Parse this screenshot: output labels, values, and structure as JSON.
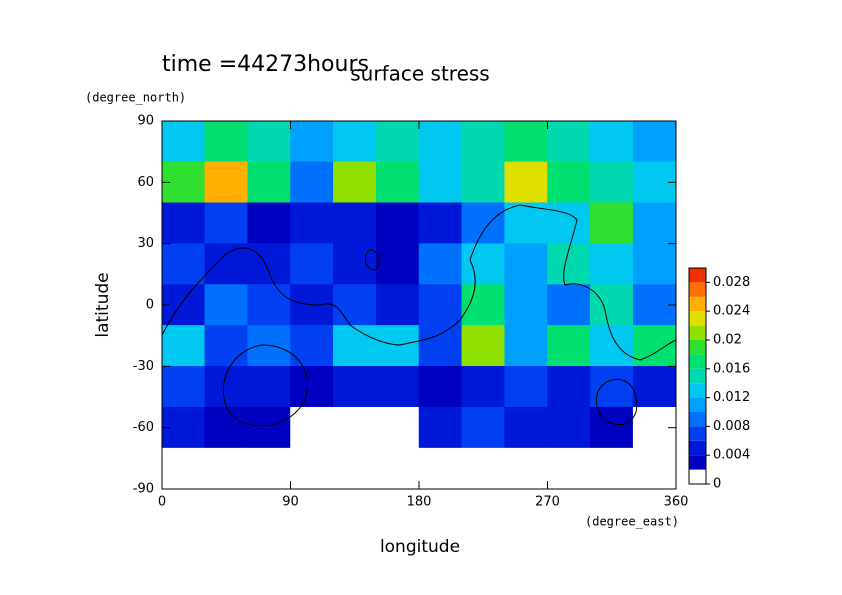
{
  "chart_data": {
    "type": "contour",
    "title": "surface stress",
    "subtitle": "time =44273hours",
    "x_label": "longitude",
    "y_label": "latitude",
    "x_unit": "(degree_east)",
    "y_unit": "(degree_north)",
    "xlim": [
      0,
      360
    ],
    "xticks": [
      0,
      90,
      180,
      270,
      360
    ],
    "ylim": [
      -90,
      90
    ],
    "yticks": [
      -90,
      -60,
      -30,
      0,
      30,
      60,
      90
    ],
    "x": [
      15,
      45,
      75,
      105,
      135,
      165,
      195,
      225,
      255,
      285,
      315,
      345
    ],
    "y": [
      80,
      60,
      40,
      20,
      0,
      -20,
      -40,
      -60,
      -80
    ],
    "z": [
      [
        0.012,
        0.016,
        0.014,
        0.01,
        0.012,
        0.014,
        0.012,
        0.014,
        0.016,
        0.014,
        0.012,
        0.01
      ],
      [
        0.018,
        0.024,
        0.016,
        0.008,
        0.02,
        0.016,
        0.012,
        0.014,
        0.022,
        0.016,
        0.014,
        0.012
      ],
      [
        0.004,
        0.006,
        0.002,
        0.004,
        0.004,
        0.002,
        0.004,
        0.008,
        0.012,
        0.012,
        0.018,
        0.01
      ],
      [
        0.006,
        0.004,
        0.004,
        0.006,
        0.004,
        0.002,
        0.008,
        0.012,
        0.01,
        0.014,
        0.012,
        0.01
      ],
      [
        0.004,
        0.008,
        0.006,
        0.004,
        0.006,
        0.004,
        0.006,
        0.016,
        0.01,
        0.008,
        0.014,
        0.008
      ],
      [
        0.012,
        0.006,
        0.008,
        0.006,
        0.012,
        0.012,
        0.006,
        0.02,
        0.01,
        0.016,
        0.012,
        0.016
      ],
      [
        0.006,
        0.004,
        0.004,
        0.002,
        0.004,
        0.004,
        0.002,
        0.004,
        0.006,
        0.004,
        0.006,
        0.004
      ],
      [
        0.004,
        0.002,
        0.002,
        0,
        0,
        0,
        0.004,
        0.006,
        0.004,
        0.004,
        0.002,
        0
      ],
      [
        0,
        0,
        0,
        0,
        0,
        0,
        0,
        0,
        0,
        0,
        0,
        0
      ]
    ],
    "zlim": [
      0,
      0.03
    ],
    "zticks": [
      0,
      0.004,
      0.008,
      0.012,
      0.016,
      0.02,
      0.024,
      0.028
    ],
    "colors": [
      "#ffffff",
      "#0000c0",
      "#0018d8",
      "#0040f0",
      "#0070ff",
      "#00a0ff",
      "#00c8f0",
      "#00d8b0",
      "#00e070",
      "#30e030",
      "#90e000",
      "#e0e000",
      "#ffb000",
      "#ff7000",
      "#f03000"
    ]
  }
}
